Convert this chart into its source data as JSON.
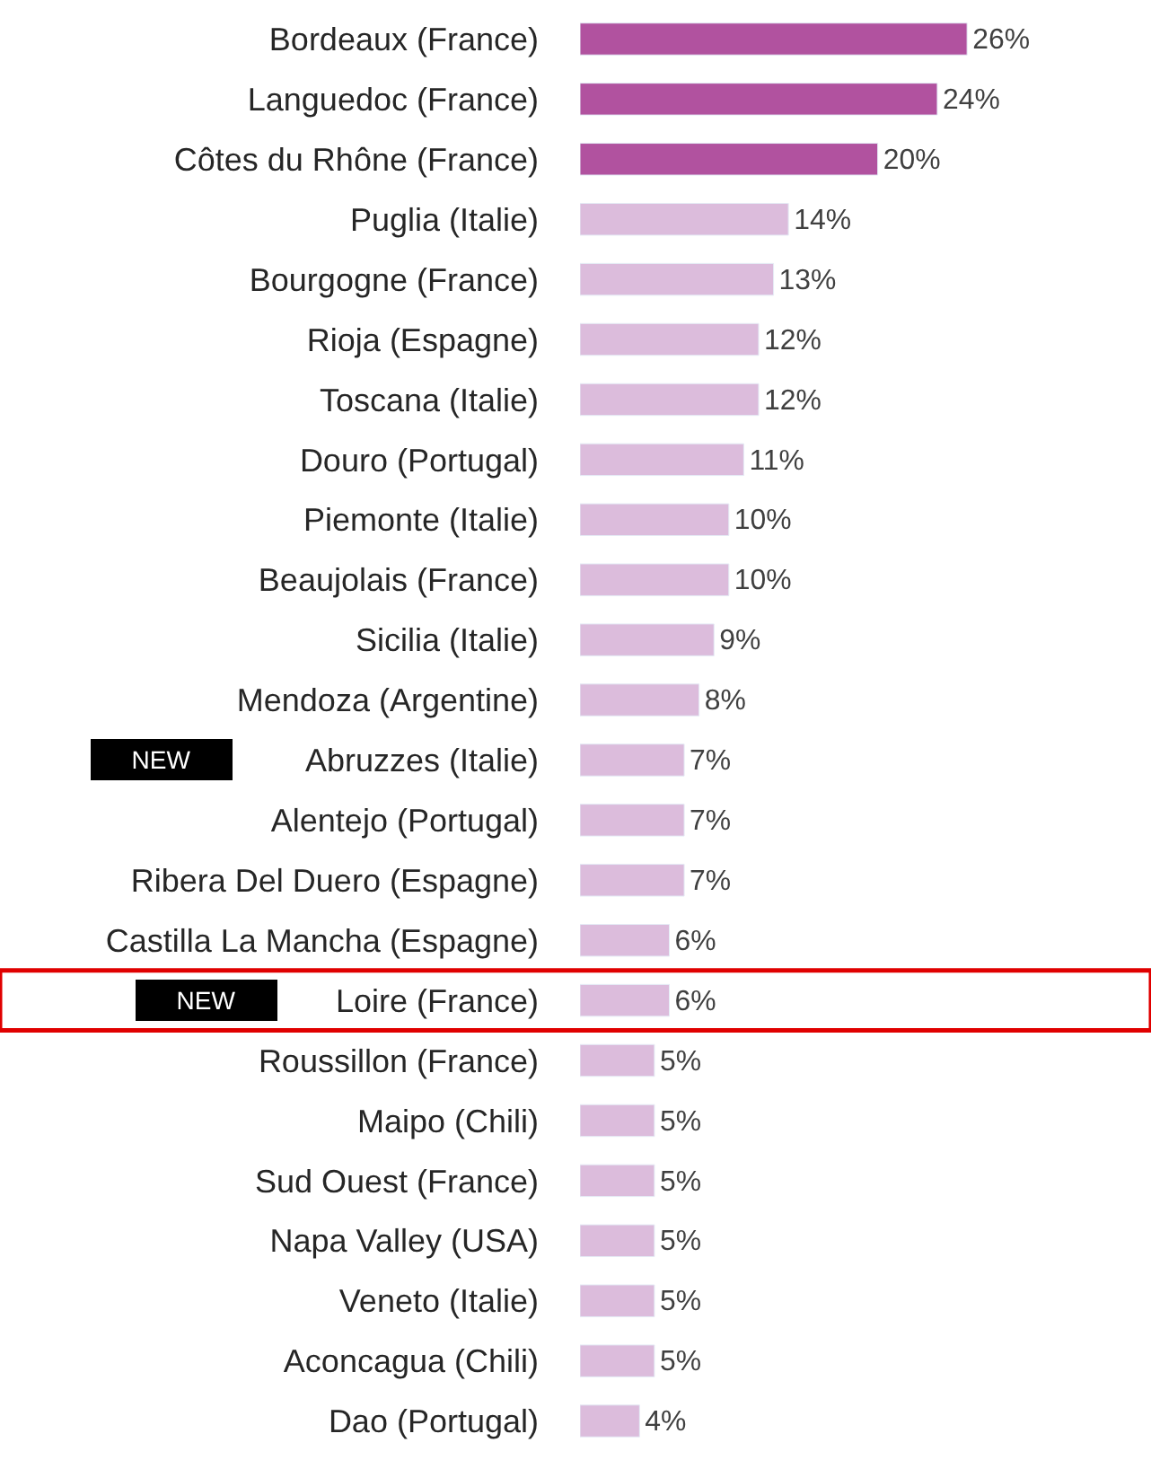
{
  "chart_data": {
    "type": "bar",
    "orientation": "horizontal",
    "data_labels": true,
    "categories": [
      "Bordeaux (France)",
      "Languedoc (France)",
      "Côtes du Rhône (France)",
      "Puglia (Italie)",
      "Bourgogne (France)",
      "Rioja (Espagne)",
      "Toscana (Italie)",
      "Douro (Portugal)",
      "Piemonte (Italie)",
      "Beaujolais (France)",
      "Sicilia (Italie)",
      "Mendoza (Argentine)",
      "Abruzzes (Italie)",
      "Alentejo (Portugal)",
      "Ribera Del Duero (Espagne)",
      "Castilla La Mancha (Espagne)",
      "Loire (France)",
      "Roussillon (France)",
      "Maipo (Chili)",
      "Sud Ouest (France)",
      "Napa Valley (USA)",
      "Veneto (Italie)",
      "Aconcagua (Chili)",
      "Dao (Portugal)"
    ],
    "values": [
      26,
      24,
      20,
      14,
      13,
      12,
      12,
      11,
      10,
      10,
      9,
      8,
      7,
      7,
      7,
      6,
      6,
      5,
      5,
      5,
      5,
      5,
      5,
      4
    ],
    "value_labels": [
      "26%",
      "24%",
      "20%",
      "14%",
      "13%",
      "12%",
      "12%",
      "11%",
      "10%",
      "10%",
      "9%",
      "8%",
      "7%",
      "7%",
      "7%",
      "6%",
      "6%",
      "5%",
      "5%",
      "5%",
      "5%",
      "5%",
      "5%",
      "4%"
    ],
    "colors": [
      "#b1529f",
      "#b1529f",
      "#b1529f",
      "#dcbcdc",
      "#dcbcdc",
      "#dcbcdc",
      "#dcbcdc",
      "#dcbcdc",
      "#dcbcdc",
      "#dcbcdc",
      "#dcbcdc",
      "#dcbcdc",
      "#dcbcdc",
      "#dcbcdc",
      "#dcbcdc",
      "#dcbcdc",
      "#dcbcdc",
      "#dcbcdc",
      "#dcbcdc",
      "#dcbcdc",
      "#dcbcdc",
      "#dcbcdc",
      "#dcbcdc",
      "#dcbcdc"
    ],
    "annotations": [
      "NEW",
      "NEW"
    ]
  }
}
